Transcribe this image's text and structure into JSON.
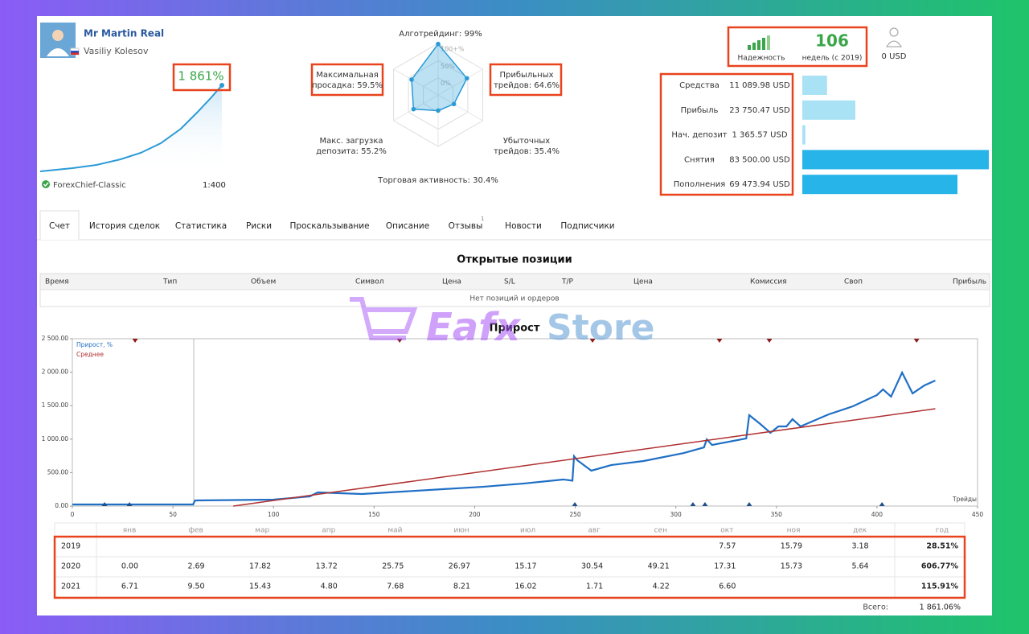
{
  "header": {
    "name": "Mr Martin Real",
    "author": "Vasiliy Kolesov",
    "growth": "1 861%",
    "broker": "ForexChief-Classic",
    "leverage": "1:400"
  },
  "radar": {
    "axes": [
      {
        "lines": [
          "Алготрейдинг: 99%"
        ],
        "value": 99
      },
      {
        "lines": [
          "Прибыльных",
          "трейдов: 64.6%"
        ],
        "value": 64.6
      },
      {
        "lines": [
          "Убыточных",
          "трейдов: 35.4%"
        ],
        "value": 35.4
      },
      {
        "lines": [
          "Торговая активность: 30.4%"
        ],
        "value": 30.4
      },
      {
        "lines": [
          "Макс. загрузка",
          "депозита: 55.2%"
        ],
        "value": 55.2
      },
      {
        "lines": [
          "Максимальная",
          "просадка: 59.5%"
        ],
        "value": 59.5
      }
    ],
    "rings": [
      "100+%",
      "50%",
      "0%"
    ]
  },
  "reliability": {
    "label": "Надежность",
    "weeks": "106",
    "weeks_label": "недель (с 2019)",
    "funds": "0 USD"
  },
  "stats": [
    {
      "label": "Средства",
      "value": 11089.98,
      "value_label": "11 089.98 USD",
      "color": "#a8e2f4"
    },
    {
      "label": "Прибыль",
      "value": 23750.47,
      "value_label": "23 750.47 USD",
      "color": "#a8e2f4"
    },
    {
      "label": "Нач. депозит",
      "value": 1365.57,
      "value_label": "1 365.57 USD",
      "color": "#a8e2f4"
    },
    {
      "label": "Снятия",
      "value": 83500.0,
      "value_label": "83 500.00 USD",
      "color": "#27b4e8"
    },
    {
      "label": "Пополнения",
      "value": 69473.94,
      "value_label": "69 473.94 USD",
      "color": "#27b4e8"
    }
  ],
  "tabs": [
    "Счет",
    "История сделок",
    "Статистика",
    "Риски",
    "Проскальзывание",
    "Описание",
    "Отзывы",
    "Новости",
    "Подписчики"
  ],
  "reviews_count": "1",
  "open_positions": {
    "title": "Открытые позиции",
    "columns": [
      "Время",
      "Тип",
      "Объем",
      "Символ",
      "Цена",
      "S/L",
      "T/P",
      "Цена",
      "Комиссия",
      "Своп",
      "Прибыль"
    ],
    "empty": "Нет позиций и ордеров"
  },
  "watermark": {
    "brand": "Eafx",
    "suffix": "Store"
  },
  "chart_data": {
    "type": "line",
    "title": "Прирост",
    "x_label": "Трейды",
    "xlim": [
      0,
      450
    ],
    "xticks": [
      0,
      50,
      100,
      150,
      200,
      250,
      300,
      350,
      400,
      450
    ],
    "ylim": [
      0,
      2500
    ],
    "yticks": [
      {
        "value": 0,
        "label": "0.00"
      },
      {
        "value": 500,
        "label": "500.00"
      },
      {
        "value": 1000,
        "label": "1 000.00"
      },
      {
        "value": 1500,
        "label": "1 500.00"
      },
      {
        "value": 2000,
        "label": "2 000.00"
      },
      {
        "value": 2500,
        "label": "2 500.00"
      }
    ],
    "series": [
      {
        "name": "Прирост, %",
        "color": "#1f6fc5",
        "x": [
          0,
          60,
          61,
          100,
          118,
          122,
          144,
          164,
          184,
          204,
          224,
          244,
          248.6,
          249.4,
          251,
          258,
          268,
          284,
          304,
          314,
          315.4,
          318,
          335,
          336.5,
          342,
          347,
          351,
          355,
          358,
          362,
          376,
          388,
          400,
          403,
          407,
          412.5,
          417.7,
          423.6,
          429
        ],
        "values": [
          24,
          24,
          84,
          96,
          144,
          204,
          180,
          216,
          252,
          288,
          336,
          397,
          380,
          745,
          685,
          529,
          613,
          673,
          793,
          877,
          997,
          913,
          1010,
          1358,
          1226,
          1094,
          1190,
          1190,
          1298,
          1190,
          1370,
          1490,
          1659,
          1743,
          1635,
          1995,
          1683,
          1803,
          1875
        ]
      },
      {
        "name": "Среднее",
        "color": "#b03030",
        "x": [
          80,
          429
        ],
        "values": [
          0,
          1454
        ]
      }
    ],
    "markers_top": {
      "color": "#8b1a1a",
      "x": [
        31.2,
        162.7,
        258.6,
        321.7,
        346.5,
        419.7
      ]
    },
    "markers_bottom": {
      "color": "#1f4f8a",
      "x": [
        16,
        28.4,
        249.8,
        308.5,
        314.5,
        336.5,
        402.5
      ]
    }
  },
  "monthly": {
    "columns": [
      "янв",
      "фев",
      "мар",
      "апр",
      "май",
      "июн",
      "июл",
      "авг",
      "сен",
      "окт",
      "ноя",
      "дек",
      "год"
    ],
    "rows": [
      {
        "year": "2019",
        "months": [
          null,
          null,
          null,
          null,
          null,
          null,
          null,
          null,
          null,
          "7.57",
          "15.79",
          "3.18"
        ],
        "total": "28.51%"
      },
      {
        "year": "2020",
        "months": [
          "0.00",
          "2.69",
          "17.82",
          "13.72",
          "25.75",
          "26.97",
          "15.17",
          "30.54",
          "49.21",
          "17.31",
          "15.73",
          "5.64"
        ],
        "total": "606.77%"
      },
      {
        "year": "2021",
        "months": [
          "6.71",
          "9.50",
          "15.43",
          "4.80",
          "7.68",
          "8.21",
          "16.02",
          "1.71",
          "4.22",
          "6.60",
          null,
          null
        ],
        "total": "115.91%"
      }
    ],
    "total_label": "Всего:",
    "total": "1 861.06%"
  }
}
